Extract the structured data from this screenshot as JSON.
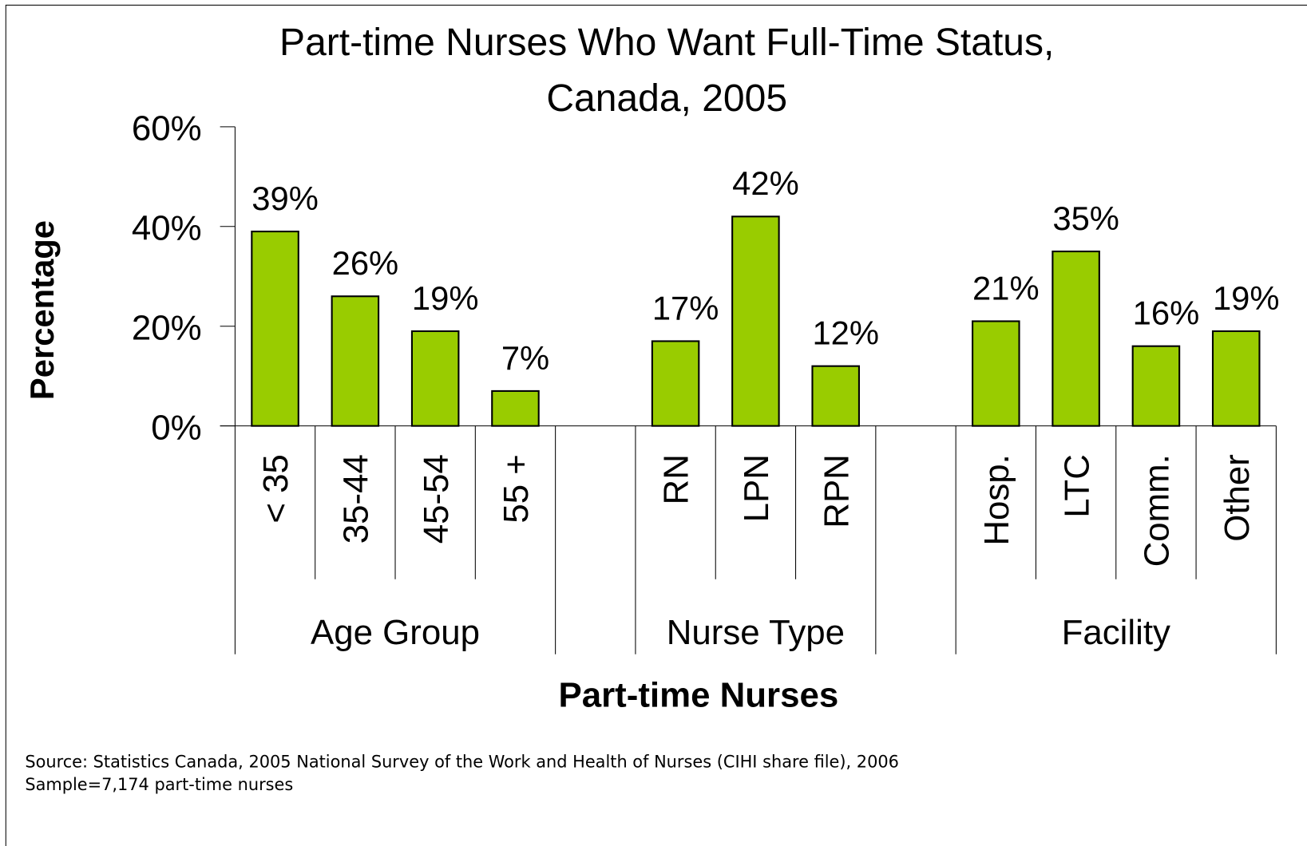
{
  "chart_data": {
    "type": "bar",
    "title": [
      "Part-time Nurses Who Want Full-Time Status,",
      "Canada, 2005"
    ],
    "y_label": "Percentage",
    "x_label": "Part-time Nurses",
    "categories": [
      "< 35",
      "35-44",
      "45-54",
      "55 +",
      null,
      "RN",
      "LPN",
      "RPN",
      null,
      "Hosp.",
      "LTC",
      "Comm.",
      "Other"
    ],
    "values": [
      39,
      26,
      19,
      7,
      null,
      17,
      42,
      12,
      null,
      21,
      35,
      16,
      19
    ],
    "value_labels": [
      "39%",
      "26%",
      "19%",
      "7%",
      null,
      "17%",
      "42%",
      "12%",
      null,
      "21%",
      "35%",
      "16%",
      "19%"
    ],
    "groups": [
      {
        "label": "Age Group",
        "categories": [
          "< 35",
          "35-44",
          "45-54",
          "55 +"
        ]
      },
      {
        "label": "Nurse Type",
        "categories": [
          "RN",
          "LPN",
          "RPN"
        ]
      },
      {
        "label": "Facility",
        "categories": [
          "Hosp.",
          "LTC",
          "Comm.",
          "Other"
        ]
      }
    ],
    "color": "#99cc00",
    "ylim": [
      0,
      60
    ],
    "yticks": [
      {
        "value": 0,
        "label": "0%"
      },
      {
        "value": 20,
        "label": "20%"
      },
      {
        "value": 40,
        "label": "40%"
      },
      {
        "value": 60,
        "label": "60%"
      }
    ],
    "notes": [
      "Source: Statistics Canada, 2005 National Survey of the Work and Health of Nurses (CIHI share file), 2006",
      "Sample=7,174 part-time nurses"
    ]
  }
}
